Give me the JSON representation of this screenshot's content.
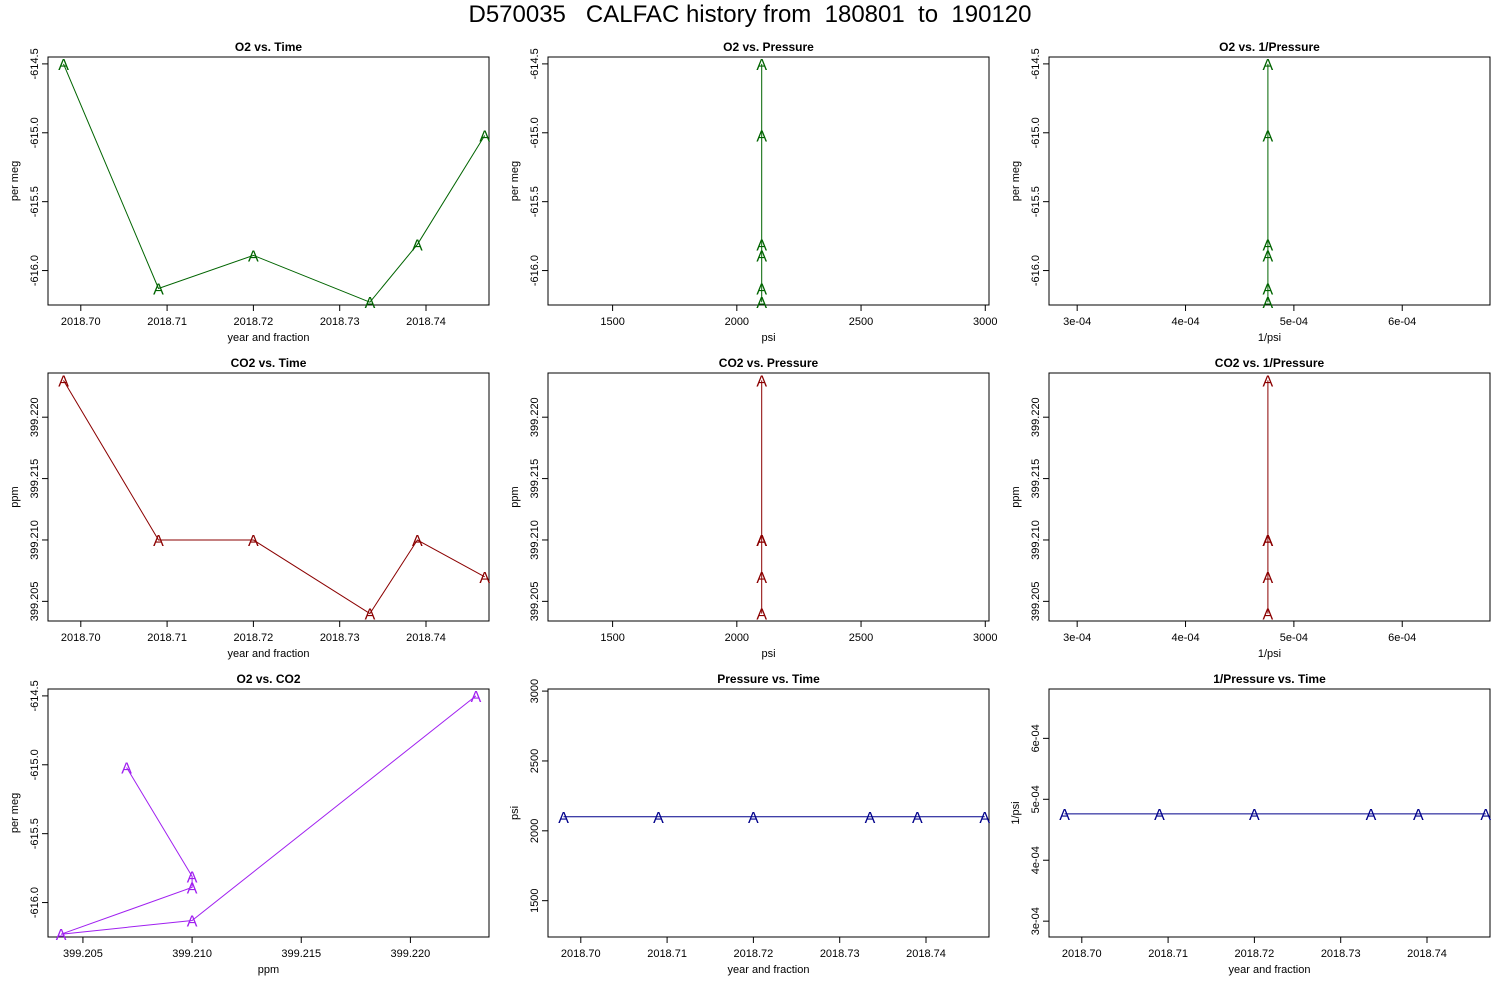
{
  "title": "D570035   CALFAC history from  180801  to  190120",
  "colors": {
    "o2": "#006400",
    "co2": "#8b0000",
    "o2co2": "#a020f0",
    "pressure": "#00008b"
  },
  "chart_data": [
    {
      "type": "line",
      "title": "O2 vs. Time",
      "xlabel": "year and fraction",
      "ylabel": "per meg",
      "color": "#006400",
      "marker": "A",
      "xlim": [
        2018.6962,
        2018.7473
      ],
      "ylim": [
        -616.25,
        -614.45
      ],
      "xticks": [
        2018.7,
        2018.71,
        2018.72,
        2018.73,
        2018.74
      ],
      "xtick_labels": [
        "2018.70",
        "2018.71",
        "2018.72",
        "2018.73",
        "2018.74"
      ],
      "yticks": [
        -616.0,
        -615.5,
        -615.0,
        -614.5
      ],
      "ytick_labels": [
        "-616.0",
        "-615.5",
        "-615.0",
        "-614.5"
      ],
      "x": [
        2018.698,
        2018.709,
        2018.72,
        2018.7335,
        2018.739,
        2018.7468
      ],
      "y": [
        -614.5,
        -616.13,
        -615.89,
        -616.23,
        -615.81,
        -615.02
      ]
    },
    {
      "type": "line",
      "title": "O2 vs. Pressure",
      "xlabel": "psi",
      "ylabel": "per meg",
      "color": "#006400",
      "marker": "A",
      "xlim": [
        1240,
        3015
      ],
      "ylim": [
        -616.25,
        -614.45
      ],
      "xticks": [
        1500,
        2000,
        2500,
        3000
      ],
      "xtick_labels": [
        "1500",
        "2000",
        "2500",
        "3000"
      ],
      "yticks": [
        -616.0,
        -615.5,
        -615.0,
        -614.5
      ],
      "ytick_labels": [
        "-616.0",
        "-615.5",
        "-615.0",
        "-614.5"
      ],
      "x": [
        2100,
        2100,
        2100,
        2100,
        2100,
        2100
      ],
      "y": [
        -614.5,
        -616.13,
        -615.89,
        -616.23,
        -615.81,
        -615.02
      ]
    },
    {
      "type": "line",
      "title": "O2 vs. 1/Pressure",
      "xlabel": "1/psi",
      "ylabel": "per meg",
      "color": "#006400",
      "marker": "A",
      "xlim": [
        0.000274,
        0.000681
      ],
      "ylim": [
        -616.25,
        -614.45
      ],
      "xticks": [
        0.0003,
        0.0004,
        0.0005,
        0.0006
      ],
      "xtick_labels": [
        "3e-04",
        "4e-04",
        "5e-04",
        "6e-04"
      ],
      "yticks": [
        -616.0,
        -615.5,
        -615.0,
        -614.5
      ],
      "ytick_labels": [
        "-616.0",
        "-615.5",
        "-615.0",
        "-614.5"
      ],
      "x": [
        0.000476,
        0.000476,
        0.000476,
        0.000476,
        0.000476,
        0.000476
      ],
      "y": [
        -614.5,
        -616.13,
        -615.89,
        -616.23,
        -615.81,
        -615.02
      ]
    },
    {
      "type": "line",
      "title": "CO2 vs. Time",
      "xlabel": "year and fraction",
      "ylabel": "ppm",
      "color": "#8b0000",
      "marker": "A",
      "xlim": [
        2018.6962,
        2018.7473
      ],
      "ylim": [
        399.2034,
        399.2236
      ],
      "xticks": [
        2018.7,
        2018.71,
        2018.72,
        2018.73,
        2018.74
      ],
      "xtick_labels": [
        "2018.70",
        "2018.71",
        "2018.72",
        "2018.73",
        "2018.74"
      ],
      "yticks": [
        399.205,
        399.21,
        399.215,
        399.22
      ],
      "ytick_labels": [
        "399.205",
        "399.210",
        "399.215",
        "399.220"
      ],
      "x": [
        2018.698,
        2018.709,
        2018.72,
        2018.7335,
        2018.739,
        2018.7468
      ],
      "y": [
        399.223,
        399.21,
        399.21,
        399.204,
        399.21,
        399.207
      ]
    },
    {
      "type": "line",
      "title": "CO2 vs. Pressure",
      "xlabel": "psi",
      "ylabel": "ppm",
      "color": "#8b0000",
      "marker": "A",
      "xlim": [
        1240,
        3015
      ],
      "ylim": [
        399.2034,
        399.2236
      ],
      "xticks": [
        1500,
        2000,
        2500,
        3000
      ],
      "xtick_labels": [
        "1500",
        "2000",
        "2500",
        "3000"
      ],
      "yticks": [
        399.205,
        399.21,
        399.215,
        399.22
      ],
      "ytick_labels": [
        "399.205",
        "399.210",
        "399.215",
        "399.220"
      ],
      "x": [
        2100,
        2100,
        2100,
        2100,
        2100,
        2100
      ],
      "y": [
        399.223,
        399.21,
        399.21,
        399.204,
        399.21,
        399.207
      ]
    },
    {
      "type": "line",
      "title": "CO2 vs. 1/Pressure",
      "xlabel": "1/psi",
      "ylabel": "ppm",
      "color": "#8b0000",
      "marker": "A",
      "xlim": [
        0.000274,
        0.000681
      ],
      "ylim": [
        399.2034,
        399.2236
      ],
      "xticks": [
        0.0003,
        0.0004,
        0.0005,
        0.0006
      ],
      "xtick_labels": [
        "3e-04",
        "4e-04",
        "5e-04",
        "6e-04"
      ],
      "yticks": [
        399.205,
        399.21,
        399.215,
        399.22
      ],
      "ytick_labels": [
        "399.205",
        "399.210",
        "399.215",
        "399.220"
      ],
      "x": [
        0.000476,
        0.000476,
        0.000476,
        0.000476,
        0.000476,
        0.000476
      ],
      "y": [
        399.223,
        399.21,
        399.21,
        399.204,
        399.21,
        399.207
      ]
    },
    {
      "type": "line",
      "title": "O2 vs. CO2",
      "xlabel": "ppm",
      "ylabel": "per meg",
      "color": "#a020f0",
      "marker": "A",
      "xlim": [
        399.2034,
        399.2236
      ],
      "ylim": [
        -616.25,
        -614.45
      ],
      "xticks": [
        399.205,
        399.21,
        399.215,
        399.22
      ],
      "xtick_labels": [
        "399.205",
        "399.210",
        "399.215",
        "399.220"
      ],
      "yticks": [
        -616.0,
        -615.5,
        -615.0,
        -614.5
      ],
      "ytick_labels": [
        "-616.0",
        "-615.5",
        "-615.0",
        "-614.5"
      ],
      "x": [
        399.207,
        399.21,
        399.21,
        399.204,
        399.21,
        399.223
      ],
      "y": [
        -615.02,
        -615.81,
        -615.89,
        -616.23,
        -616.13,
        -614.5
      ]
    },
    {
      "type": "line",
      "title": "Pressure vs. Time",
      "xlabel": "year and fraction",
      "ylabel": "psi",
      "color": "#00008b",
      "marker": "A",
      "xlim": [
        2018.6962,
        2018.7473
      ],
      "ylim": [
        1240,
        3015
      ],
      "xticks": [
        2018.7,
        2018.71,
        2018.72,
        2018.73,
        2018.74
      ],
      "xtick_labels": [
        "2018.70",
        "2018.71",
        "2018.72",
        "2018.73",
        "2018.74"
      ],
      "yticks": [
        1500,
        2000,
        2500,
        3000
      ],
      "ytick_labels": [
        "1500",
        "2000",
        "2500",
        "3000"
      ],
      "x": [
        2018.698,
        2018.709,
        2018.72,
        2018.7335,
        2018.739,
        2018.7468
      ],
      "y": [
        2100,
        2100,
        2100,
        2100,
        2100,
        2100
      ]
    },
    {
      "type": "line",
      "title": "1/Pressure vs. Time",
      "xlabel": "year and fraction",
      "ylabel": "1/psi",
      "color": "#00008b",
      "marker": "A",
      "xlim": [
        2018.6962,
        2018.7473
      ],
      "ylim": [
        0.000274,
        0.000681
      ],
      "xticks": [
        2018.7,
        2018.71,
        2018.72,
        2018.73,
        2018.74
      ],
      "xtick_labels": [
        "2018.70",
        "2018.71",
        "2018.72",
        "2018.73",
        "2018.74"
      ],
      "yticks": [
        0.0003,
        0.0004,
        0.0005,
        0.0006
      ],
      "ytick_labels": [
        "3e-04",
        "4e-04",
        "5e-04",
        "6e-04"
      ],
      "x": [
        2018.698,
        2018.709,
        2018.72,
        2018.7335,
        2018.739,
        2018.7468
      ],
      "y": [
        0.000476,
        0.000476,
        0.000476,
        0.000476,
        0.000476,
        0.000476
      ]
    }
  ]
}
